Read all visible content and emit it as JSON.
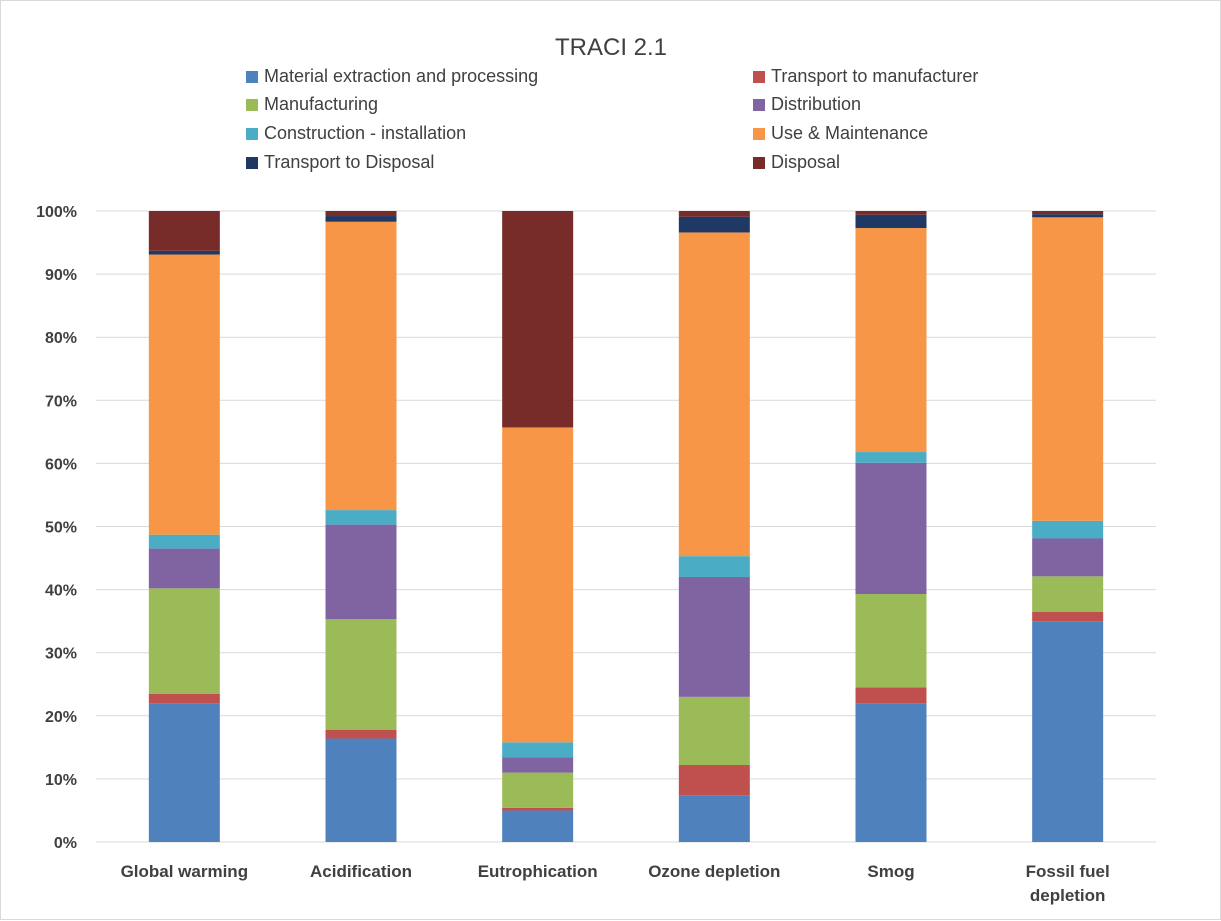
{
  "chart_data": {
    "type": "bar",
    "stacked": true,
    "percent": true,
    "title": "TRACI 2.1",
    "xlabel": "",
    "ylabel": "",
    "ylim": [
      0,
      100
    ],
    "yticks": [
      "0%",
      "10%",
      "20%",
      "30%",
      "40%",
      "50%",
      "60%",
      "70%",
      "80%",
      "90%",
      "100%"
    ],
    "grid": true,
    "legend_position": "top",
    "categories": [
      [
        "Global warming"
      ],
      [
        "Acidification"
      ],
      [
        "Eutrophication"
      ],
      [
        "Ozone depletion"
      ],
      [
        "Smog"
      ],
      [
        "Fossil fuel",
        "depletion"
      ]
    ],
    "series": [
      {
        "name": "Material extraction and processing",
        "color": "#4f81bd",
        "values": [
          22.0,
          16.4,
          5.0,
          7.4,
          22.0,
          35.0
        ]
      },
      {
        "name": "Transport to manufacturer",
        "color": "#c0504d",
        "values": [
          1.5,
          1.4,
          0.4,
          4.8,
          2.5,
          1.5
        ]
      },
      {
        "name": "Manufacturing",
        "color": "#9bbb59",
        "values": [
          16.7,
          17.5,
          5.6,
          10.8,
          14.8,
          5.6
        ]
      },
      {
        "name": "Distribution",
        "color": "#8064a2",
        "values": [
          6.3,
          15.0,
          2.4,
          19.0,
          20.8,
          6.0
        ]
      },
      {
        "name": "Construction -  installation",
        "color": "#4bacc6",
        "values": [
          2.2,
          2.3,
          2.4,
          3.3,
          1.7,
          2.8
        ]
      },
      {
        "name": "Use & Maintenance",
        "color": "#f79646",
        "values": [
          44.4,
          45.7,
          49.9,
          51.3,
          35.5,
          48.1
        ]
      },
      {
        "name": "Transport to Disposal",
        "color": "#1f3864",
        "values": [
          0.6,
          0.9,
          0.0,
          2.5,
          2.1,
          0.5
        ]
      },
      {
        "name": "Disposal",
        "color": "#772c2a",
        "values": [
          6.3,
          0.8,
          34.3,
          0.9,
          0.6,
          0.5
        ]
      }
    ]
  }
}
